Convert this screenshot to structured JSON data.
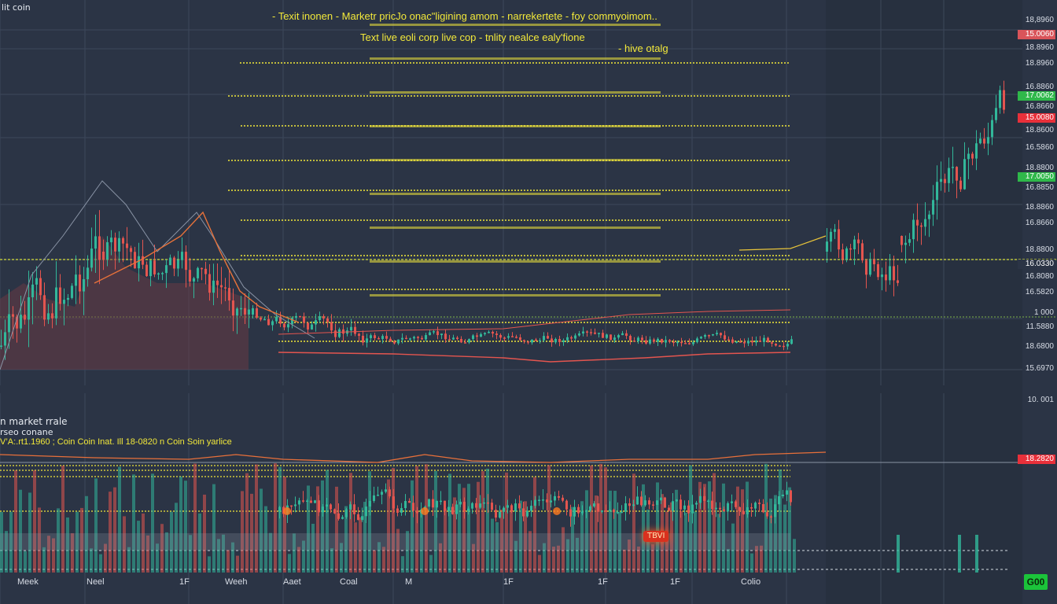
{
  "header": {
    "top_left": "lit coin",
    "line1": "- Texit inonen - Marketr pricJo onac\"ligining amom - narrekertete - foy commyoimom..",
    "line2": "Text live eoli corp live cop - tnlity nealce ealy'fione",
    "line3": "- hive otalg"
  },
  "lower_panel": {
    "title": "n market rrale",
    "subtitle": "rseo conane",
    "ticker": "V’A:.rt1.1960 ; Coin Coin Inat. Ill 18-0820 n Coin Soin yarlice",
    "flag": "TBVI"
  },
  "price_axis": {
    "labels": [
      "18,8960",
      "18.8960",
      "18.8960",
      "16.8860",
      "16.8660",
      "18.8600",
      "16.5860",
      "18.8800",
      "16.8850",
      "18.8860",
      "16.8660",
      "18.8800",
      "16.8080",
      "16.5820",
      "1 000",
      "11.5880",
      "18.6800",
      "15.6970",
      "10. 001"
    ],
    "tags": [
      {
        "text": "15.0060",
        "color": "#d9545a"
      },
      {
        "text": "17.0062",
        "color": "#2fb84a"
      },
      {
        "text": "15.0080",
        "color": "#e8303a"
      },
      {
        "text": "17.0050",
        "color": "#2fb84a"
      },
      {
        "text": "18.2820",
        "color": "#e8303a"
      },
      {
        "text": "16.0330",
        "color": "#2b3445"
      }
    ]
  },
  "time_axis": [
    "Meek",
    "Neel",
    "1F",
    "Weeh",
    "Aaet",
    "Coal",
    "M",
    "1F",
    "1F",
    "1F",
    "Colio"
  ],
  "buttons": {
    "go": "G00"
  },
  "colors": {
    "background": "#2b3445",
    "up": "#32b79a",
    "down": "#e4554f",
    "annotation": "#f2e83a",
    "accent": "#1bc43a"
  },
  "chart_data": {
    "type": "candlestick",
    "title": "",
    "xlabel": "",
    "ylabel": "",
    "grid": true
  }
}
